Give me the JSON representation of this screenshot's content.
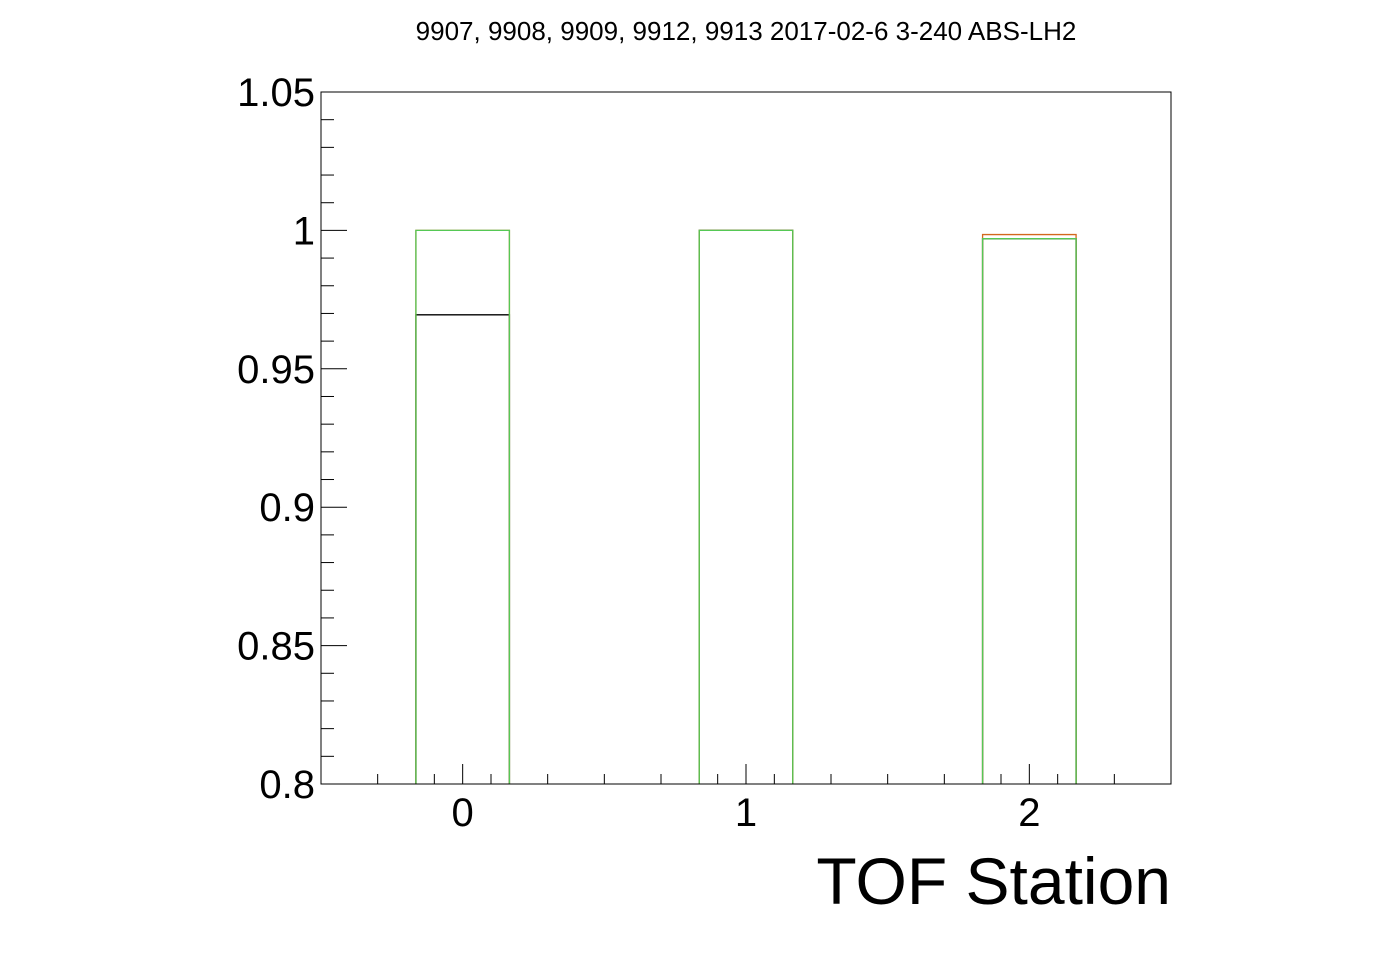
{
  "chart_data": {
    "type": "bar",
    "title": "9907, 9908, 9909, 9912, 9913 2017-02-6 3-240 ABS-LH2",
    "xlabel": "TOF Station",
    "ylabel": "",
    "xlim": [
      -0.5,
      2.5
    ],
    "ylim": [
      0.8,
      1.05
    ],
    "x_ticks": [
      0,
      1,
      2
    ],
    "x_tick_labels": [
      "0",
      "1",
      "2"
    ],
    "y_ticks": [
      0.8,
      0.85,
      0.9,
      0.95,
      1.0,
      1.05
    ],
    "y_tick_labels": [
      "0.8",
      "0.85",
      "0.9",
      "0.95",
      "1",
      "1.05"
    ],
    "bar_width": 0.33,
    "grid": false,
    "series": [
      {
        "color": "#000000",
        "values": [
          0.9695,
          1.0,
          0.997
        ]
      },
      {
        "color": "#d2691e",
        "values": [
          1.0,
          1.0,
          0.9985
        ]
      },
      {
        "color": "#55c855",
        "values": [
          1.0,
          1.0,
          0.997
        ]
      }
    ]
  }
}
